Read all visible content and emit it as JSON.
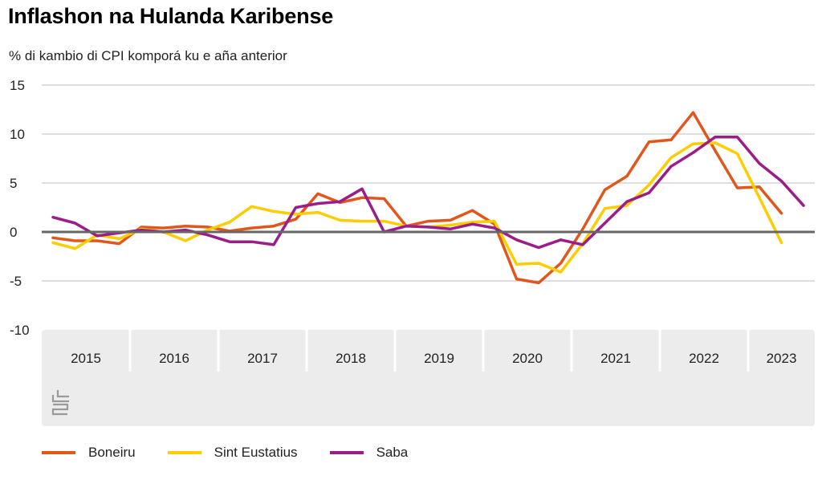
{
  "title": "Inflashon na Hulanda Karibense",
  "subtitle": "% di kambio di CPI komporá ku e aña anterior",
  "colors": {
    "boneiru": "#e1561a",
    "sint_eustatius": "#fccd00",
    "saba": "#9b1d8a",
    "zero_line": "#666666",
    "grid": "#bdbdbd",
    "axis_panel": "#ececec",
    "separator": "#ffffff"
  },
  "logo": {
    "icon": "cbs-logo-icon"
  },
  "chart_data": {
    "type": "line",
    "title": "Inflashon na Hulanda Karibense",
    "subtitle": "% di kambio di CPI komporá ku e aña anterior",
    "xlabel": "",
    "ylabel": "",
    "ylim": [
      -10,
      15
    ],
    "yticks": [
      15,
      10,
      5,
      0,
      -5,
      -10
    ],
    "grid": true,
    "legend_position": "bottom",
    "x_year_labels": [
      "2015",
      "2016",
      "2017",
      "2018",
      "2019",
      "2020",
      "2021",
      "2022",
      "2023"
    ],
    "x": [
      "2015 Q1",
      "2015 Q2",
      "2015 Q3",
      "2015 Q4",
      "2016 Q1",
      "2016 Q2",
      "2016 Q3",
      "2016 Q4",
      "2017 Q1",
      "2017 Q2",
      "2017 Q3",
      "2017 Q4",
      "2018 Q1",
      "2018 Q2",
      "2018 Q3",
      "2018 Q4",
      "2019 Q1",
      "2019 Q2",
      "2019 Q3",
      "2019 Q4",
      "2020 Q1",
      "2020 Q2",
      "2020 Q3",
      "2020 Q4",
      "2021 Q1",
      "2021 Q2",
      "2021 Q3",
      "2021 Q4",
      "2022 Q1",
      "2022 Q2",
      "2022 Q3",
      "2022 Q4",
      "2023 Q1",
      "2023 Q2",
      "2023 Q3"
    ],
    "series": [
      {
        "name": "Boneiru",
        "color": "#e1561a",
        "values": [
          -0.6,
          -0.9,
          -0.9,
          -1.2,
          0.5,
          0.4,
          0.6,
          0.5,
          0.1,
          0.4,
          0.6,
          1.3,
          3.9,
          3.0,
          3.5,
          3.4,
          0.6,
          1.1,
          1.2,
          2.2,
          0.8,
          -4.8,
          -5.2,
          -3.2,
          0.3,
          4.3,
          5.7,
          9.2,
          9.4,
          12.2,
          8.3,
          4.5,
          4.6,
          1.9,
          null
        ]
      },
      {
        "name": "Sint Eustatius",
        "color": "#fccd00",
        "values": [
          -1.1,
          -1.7,
          -0.3,
          -0.7,
          0.3,
          0.0,
          -0.9,
          0.2,
          1.0,
          2.6,
          2.1,
          1.8,
          2.0,
          1.2,
          1.1,
          1.1,
          0.6,
          0.5,
          0.7,
          1.0,
          1.1,
          -3.3,
          -3.2,
          -4.1,
          -1.2,
          2.4,
          2.7,
          4.8,
          7.6,
          9.0,
          9.1,
          8.0,
          3.5,
          -1.1,
          null
        ]
      },
      {
        "name": "Saba",
        "color": "#9b1d8a",
        "values": [
          1.5,
          0.9,
          -0.4,
          -0.1,
          0.2,
          0.0,
          0.2,
          -0.3,
          -1.0,
          -1.0,
          -1.3,
          2.5,
          2.9,
          3.1,
          4.4,
          0.0,
          0.6,
          0.5,
          0.3,
          0.8,
          0.4,
          -0.8,
          -1.6,
          -0.8,
          -1.3,
          0.9,
          3.1,
          4.0,
          6.7,
          8.1,
          9.7,
          9.7,
          7.0,
          5.2,
          2.7
        ]
      }
    ]
  }
}
